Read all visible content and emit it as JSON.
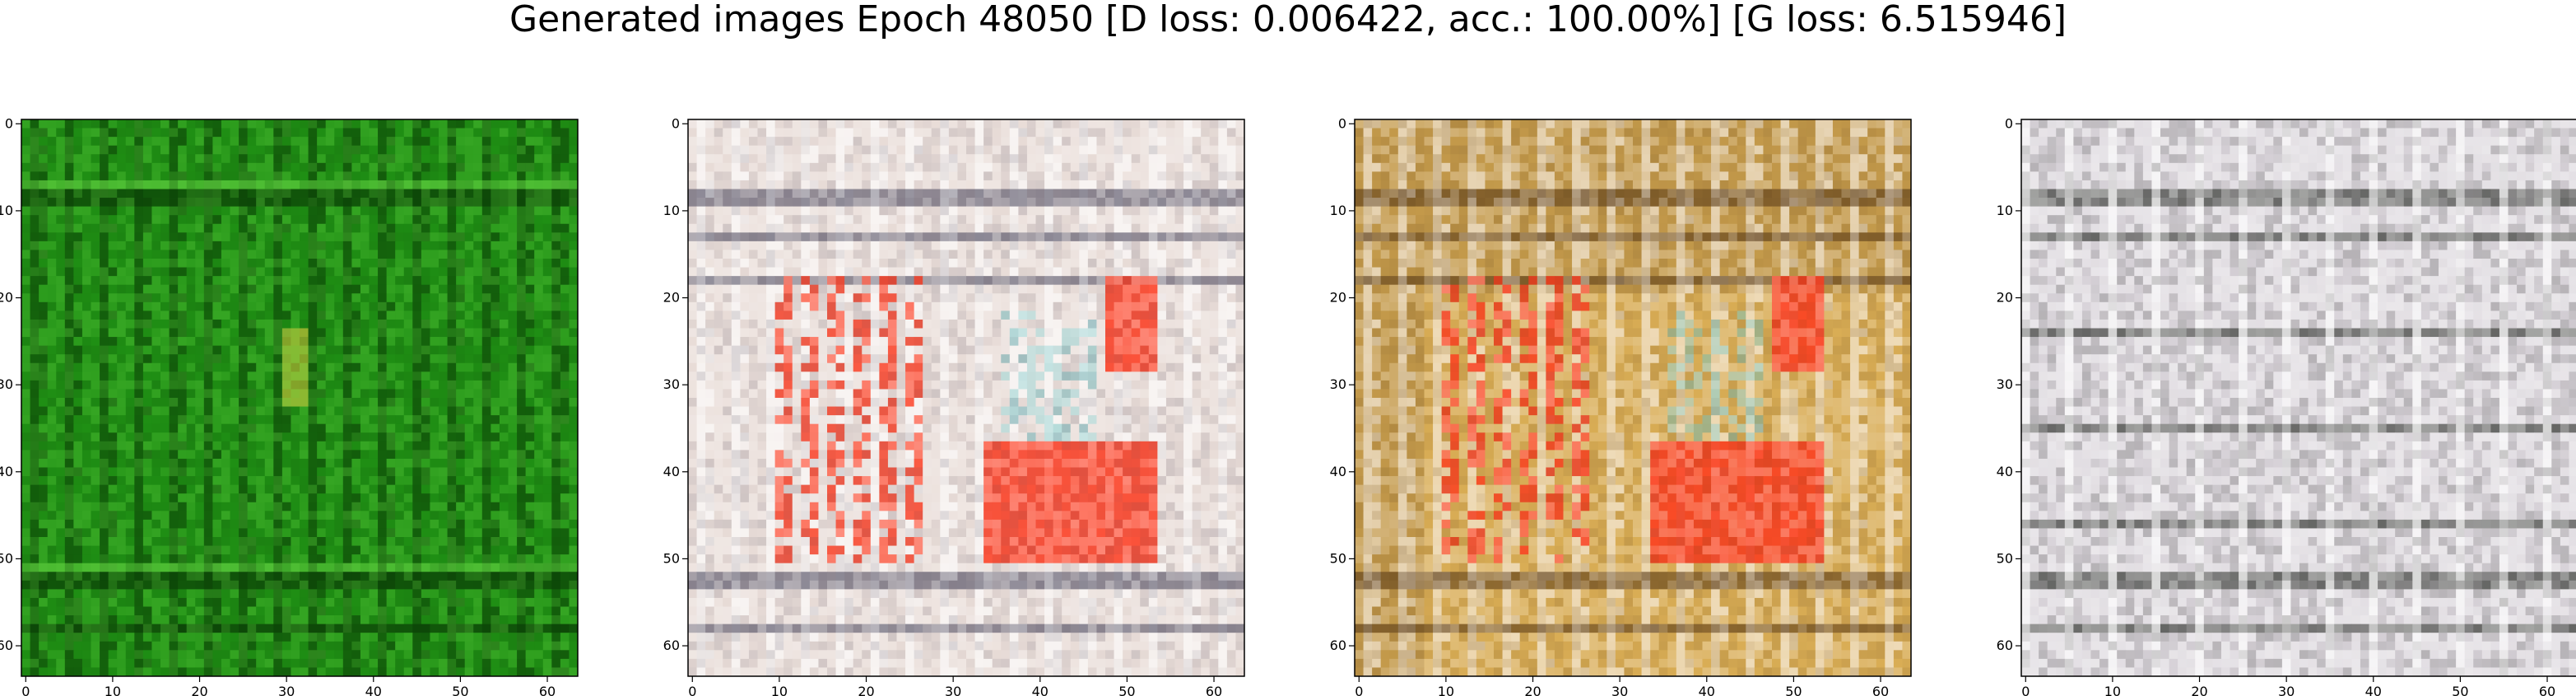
{
  "figure": {
    "title": "Generated images Epoch 48050 [D loss: 0.006422, acc.: 100.00%] [G loss: 6.515946]"
  },
  "panels": [
    {
      "name": "sample-1",
      "theme": "green",
      "colors": {
        "base": "#1f8f14",
        "dark": "#0b3f06",
        "light": "#5fcf3f",
        "accent": "#c9c23a"
      },
      "x_ticks": [
        0,
        10,
        20,
        30,
        40,
        50,
        60
      ],
      "y_ticks": [
        0,
        10,
        20,
        30,
        40,
        50,
        60
      ]
    },
    {
      "name": "sample-2",
      "theme": "pale-red",
      "colors": {
        "base": "#e9ddd8",
        "dark": "#3c3a52",
        "light": "#ffffff",
        "accent": "#ff3a1e"
      },
      "x_ticks": [
        0,
        10,
        20,
        30,
        40,
        50,
        60
      ],
      "y_ticks": [
        0,
        10,
        20,
        30,
        40,
        50,
        60
      ]
    },
    {
      "name": "sample-3",
      "theme": "gold-red",
      "colors": {
        "base": "#d9ad55",
        "dark": "#4a2d10",
        "light": "#f8f0e6",
        "accent": "#ff3a1e"
      },
      "x_ticks": [
        0,
        10,
        20,
        30,
        40,
        50,
        60
      ],
      "y_ticks": [
        0,
        10,
        20,
        30,
        40,
        50,
        60
      ]
    },
    {
      "name": "sample-4",
      "theme": "pale-grey",
      "colors": {
        "base": "#d9d4da",
        "dark": "#3a3d38",
        "light": "#ffffff",
        "accent": "#9b8a9c"
      },
      "x_ticks": [
        0,
        10,
        20,
        30,
        40,
        50,
        60
      ],
      "y_ticks": [
        0,
        10,
        20,
        30,
        40,
        50,
        60
      ]
    }
  ]
}
